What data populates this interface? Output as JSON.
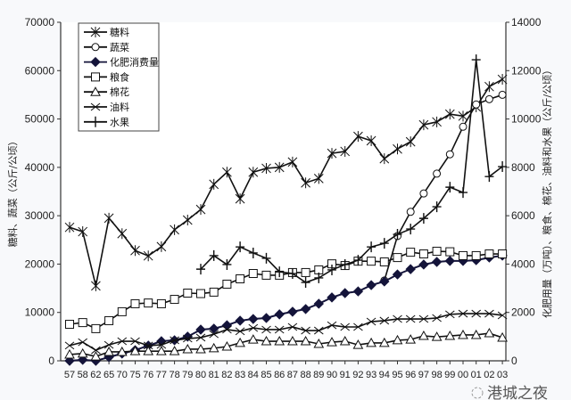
{
  "chart_data": {
    "type": "line",
    "title": "",
    "categories": [
      "57",
      "58",
      "62",
      "65",
      "70",
      "75",
      "76",
      "77",
      "78",
      "79",
      "80",
      "81",
      "82",
      "83",
      "84",
      "85",
      "86",
      "87",
      "88",
      "89",
      "90",
      "91",
      "92",
      "93",
      "94",
      "95",
      "96",
      "97",
      "98",
      "99",
      "00",
      "01",
      "02",
      "03"
    ],
    "ylabel_left": "糖料、蔬菜（公斤/公顷）",
    "ylabel_right": "化肥用量（万吨）、粮食、棉花、油料和水果（公斤/公顷）",
    "ylim_left": [
      0,
      70000
    ],
    "ylim_right": [
      0,
      14000
    ],
    "yticks_left": [
      "0",
      "10000",
      "20000",
      "30000",
      "40000",
      "50000",
      "60000",
      "70000"
    ],
    "yticks_right": [
      "0",
      "2000",
      "4000",
      "6000",
      "8000",
      "10000",
      "12000",
      "14000"
    ],
    "grid": false,
    "legend_position": "top-left",
    "series": [
      {
        "name": "糖料",
        "axis": "left",
        "marker": "asterisk",
        "values": [
          27600,
          26700,
          15500,
          29500,
          26300,
          22800,
          21700,
          23600,
          27100,
          29100,
          31300,
          36500,
          39000,
          33500,
          39000,
          39800,
          40000,
          41100,
          36800,
          37700,
          42900,
          43300,
          46400,
          45500,
          41800,
          43800,
          45300,
          48800,
          49400,
          51000,
          50600,
          52500,
          56700,
          58200
        ]
      },
      {
        "name": "蔬菜",
        "axis": "left",
        "marker": "circle",
        "values": [
          null,
          null,
          null,
          null,
          null,
          null,
          null,
          null,
          null,
          null,
          null,
          null,
          null,
          null,
          null,
          null,
          null,
          null,
          null,
          null,
          null,
          null,
          null,
          null,
          16600,
          25800,
          30800,
          34600,
          38700,
          42700,
          48400,
          53000,
          54100,
          55000
        ]
      },
      {
        "name": "化肥消费量",
        "axis": "right",
        "marker": "diamond",
        "values": [
          0,
          40,
          0,
          150,
          300,
          440,
          630,
          810,
          850,
          1000,
          1290,
          1330,
          1470,
          1660,
          1730,
          1770,
          1920,
          2030,
          2140,
          2360,
          2620,
          2800,
          2870,
          3130,
          3280,
          3570,
          3790,
          3980,
          4090,
          4130,
          4130,
          4160,
          4270,
          4350
        ]
      },
      {
        "name": "粮食",
        "axis": "right",
        "marker": "square",
        "values": [
          1510,
          1580,
          1330,
          1660,
          2030,
          2360,
          2390,
          2360,
          2540,
          2800,
          2780,
          2840,
          3170,
          3390,
          3610,
          3540,
          3540,
          3650,
          3650,
          3760,
          4010,
          3940,
          4120,
          4120,
          4090,
          4270,
          4490,
          4420,
          4530,
          4510,
          4350,
          4350,
          4420,
          4420
        ]
      },
      {
        "name": "棉花",
        "axis": "right",
        "marker": "triangle",
        "values": [
          260,
          300,
          180,
          370,
          370,
          400,
          400,
          400,
          400,
          480,
          480,
          520,
          590,
          740,
          880,
          810,
          810,
          810,
          810,
          700,
          770,
          810,
          660,
          740,
          740,
          850,
          880,
          1030,
          990,
          1030,
          1070,
          1070,
          1140,
          960
        ]
      },
      {
        "name": "油料",
        "axis": "right",
        "marker": "x",
        "values": [
          630,
          770,
          440,
          660,
          810,
          810,
          630,
          660,
          850,
          920,
          960,
          1100,
          1290,
          1220,
          1360,
          1290,
          1290,
          1400,
          1250,
          1250,
          1470,
          1400,
          1400,
          1620,
          1660,
          1730,
          1730,
          1730,
          1770,
          1920,
          1950,
          1950,
          1950,
          1880
        ]
      },
      {
        "name": "水果",
        "axis": "right",
        "marker": "plus",
        "values": [
          null,
          null,
          null,
          null,
          null,
          null,
          null,
          null,
          null,
          null,
          3790,
          4350,
          3980,
          4710,
          4460,
          4240,
          3680,
          3610,
          3240,
          3430,
          3760,
          3980,
          4160,
          4710,
          4860,
          5230,
          5450,
          5890,
          6370,
          7180,
          6960,
          12450,
          7620,
          8030
        ]
      }
    ]
  },
  "watermark": "港城之夜",
  "colors": {
    "diamond": "#14143a",
    "line": "#111111",
    "background": "#ffffff"
  }
}
